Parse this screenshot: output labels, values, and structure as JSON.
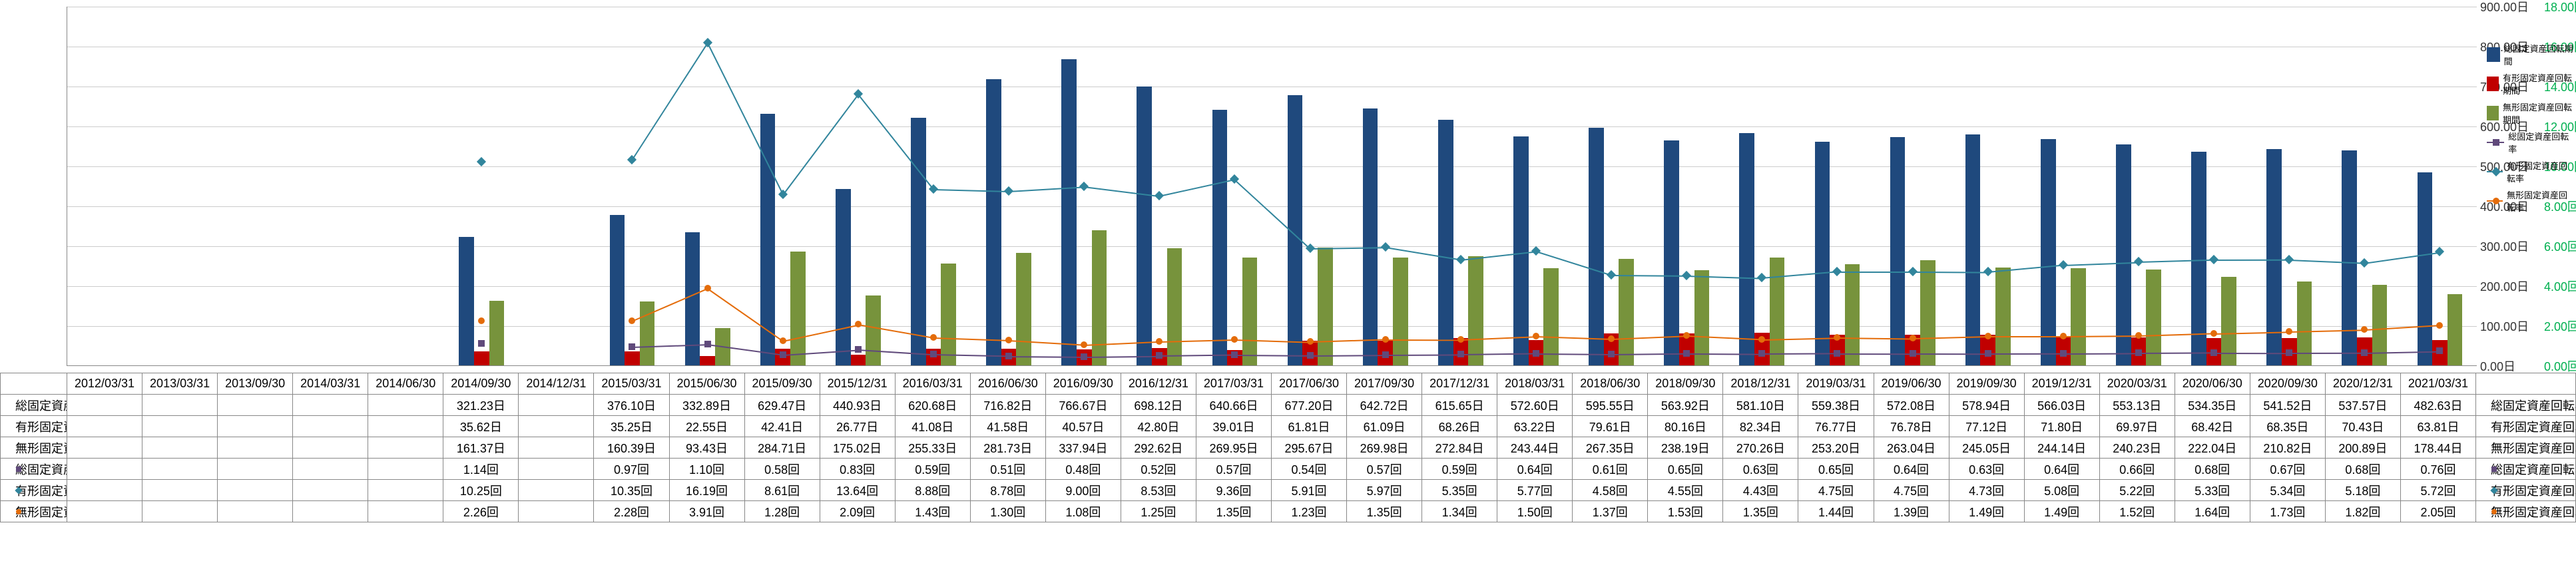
{
  "chart": {
    "type": "bar+line",
    "background_color": "#ffffff",
    "grid_color": "#cccccc",
    "axis_color": "#888888",
    "left_axis": {
      "label_suffix": "日",
      "min": 0,
      "max": 900,
      "step": 100,
      "color": "#333333"
    },
    "right_axis": {
      "label_suffix": "回",
      "min": 0,
      "max": 18,
      "step": 2,
      "color": "#00b050"
    },
    "bar_width_ratio": 0.2,
    "periods": [
      "2012/03/31",
      "2013/03/31",
      "2013/09/30",
      "2014/03/31",
      "2014/06/30",
      "2014/09/30",
      "2014/12/31",
      "2015/03/31",
      "2015/06/30",
      "2015/09/30",
      "2015/12/31",
      "2016/03/31",
      "2016/06/30",
      "2016/09/30",
      "2016/12/31",
      "2017/03/31",
      "2017/06/30",
      "2017/09/30",
      "2017/12/31",
      "2018/03/31",
      "2018/06/30",
      "2018/09/30",
      "2018/12/31",
      "2019/03/31",
      "2019/06/30",
      "2019/09/30",
      "2019/12/31",
      "2020/03/31",
      "2020/06/30",
      "2020/09/30",
      "2020/12/31",
      "2021/03/31"
    ],
    "series": [
      {
        "name": "総固定資産回転期間",
        "axis": "left",
        "kind": "bar",
        "color": "#1f497d",
        "unit": "日",
        "data": [
          null,
          null,
          null,
          null,
          null,
          321.23,
          null,
          376.1,
          332.89,
          629.47,
          440.93,
          620.68,
          716.82,
          766.67,
          698.12,
          640.66,
          677.2,
          642.72,
          615.65,
          572.6,
          595.55,
          563.92,
          581.1,
          559.38,
          572.08,
          578.94,
          566.03,
          553.13,
          534.35,
          541.52,
          537.57,
          482.63
        ]
      },
      {
        "name": "有形固定資産回転期間",
        "axis": "left",
        "kind": "bar",
        "color": "#c00000",
        "unit": "日",
        "data": [
          null,
          null,
          null,
          null,
          null,
          35.62,
          null,
          35.25,
          22.55,
          42.41,
          26.77,
          41.08,
          41.58,
          40.57,
          42.8,
          39.01,
          61.81,
          61.09,
          68.26,
          63.22,
          79.61,
          80.16,
          82.34,
          76.77,
          76.78,
          77.12,
          71.8,
          69.97,
          68.42,
          68.35,
          70.43,
          63.81
        ]
      },
      {
        "name": "無形固定資産回転期間",
        "axis": "left",
        "kind": "bar",
        "color": "#77933c",
        "unit": "日",
        "data": [
          null,
          null,
          null,
          null,
          null,
          161.37,
          null,
          160.39,
          93.43,
          284.71,
          175.02,
          255.33,
          281.73,
          337.94,
          292.62,
          269.95,
          295.67,
          269.98,
          272.84,
          243.44,
          267.35,
          238.19,
          270.26,
          253.2,
          263.04,
          245.05,
          244.14,
          240.23,
          222.04,
          210.82,
          200.89,
          178.44
        ]
      },
      {
        "name": "総固定資産回転率",
        "axis": "right",
        "kind": "line",
        "color": "#604a7b",
        "marker": "square",
        "unit": "回",
        "data": [
          null,
          null,
          null,
          null,
          null,
          1.14,
          null,
          0.97,
          1.1,
          0.58,
          0.83,
          0.59,
          0.51,
          0.48,
          0.52,
          0.57,
          0.54,
          0.57,
          0.59,
          0.64,
          0.61,
          0.65,
          0.63,
          0.65,
          0.64,
          0.63,
          0.64,
          0.66,
          0.68,
          0.67,
          0.68,
          0.76
        ]
      },
      {
        "name": "有形固定資産回転率",
        "axis": "right",
        "kind": "line",
        "color": "#31859c",
        "marker": "diamond",
        "unit": "回",
        "data": [
          null,
          null,
          null,
          null,
          null,
          10.25,
          null,
          10.35,
          16.19,
          8.61,
          13.64,
          8.88,
          8.78,
          9.0,
          8.53,
          9.36,
          5.91,
          5.97,
          5.35,
          5.77,
          4.58,
          4.55,
          4.43,
          4.75,
          4.75,
          4.73,
          5.08,
          5.22,
          5.33,
          5.34,
          5.18,
          5.72
        ]
      },
      {
        "name": "無形固定資産回転率",
        "axis": "right",
        "kind": "line",
        "color": "#e46c0a",
        "marker": "circle",
        "unit": "回",
        "data": [
          null,
          null,
          null,
          null,
          null,
          2.26,
          null,
          2.28,
          3.91,
          1.28,
          2.09,
          1.43,
          1.3,
          1.08,
          1.25,
          1.35,
          1.23,
          1.35,
          1.34,
          1.5,
          1.37,
          1.53,
          1.35,
          1.44,
          1.39,
          1.49,
          1.49,
          1.52,
          1.64,
          1.73,
          1.82,
          2.05
        ]
      }
    ]
  }
}
